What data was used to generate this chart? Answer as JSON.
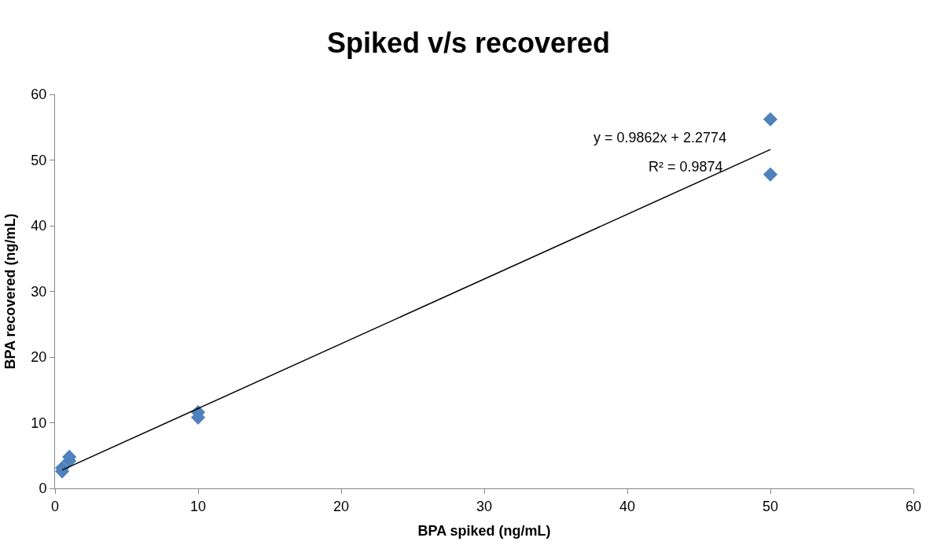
{
  "chart_data": {
    "type": "scatter",
    "title": "Spiked v/s recovered",
    "xlabel": "BPA spiked (ng/mL)",
    "ylabel": "BPA recovered (ng/mL)",
    "xlim": [
      0,
      60
    ],
    "xticks": [
      0,
      10,
      20,
      30,
      40,
      50,
      60
    ],
    "ylim": [
      0,
      60
    ],
    "yticks": [
      0,
      10,
      20,
      30,
      40,
      50,
      60
    ],
    "marker": "diamond",
    "series": [
      {
        "color": "#4f81bd",
        "x": [
          0.5,
          0.5,
          1,
          1,
          10,
          10,
          50,
          50
        ],
        "values": [
          2.6,
          3.1,
          4.2,
          4.8,
          10.8,
          11.6,
          47.8,
          56.2
        ]
      },
      {
        "type": "line",
        "color": "#000000",
        "x": [
          0.5,
          50
        ],
        "values": [
          2.8,
          51.6
        ],
        "marker": "none",
        "line_style": "solid"
      }
    ],
    "annotations": [
      "y = 0.9862x + 2.2774",
      "R² = 0.9874"
    ]
  }
}
